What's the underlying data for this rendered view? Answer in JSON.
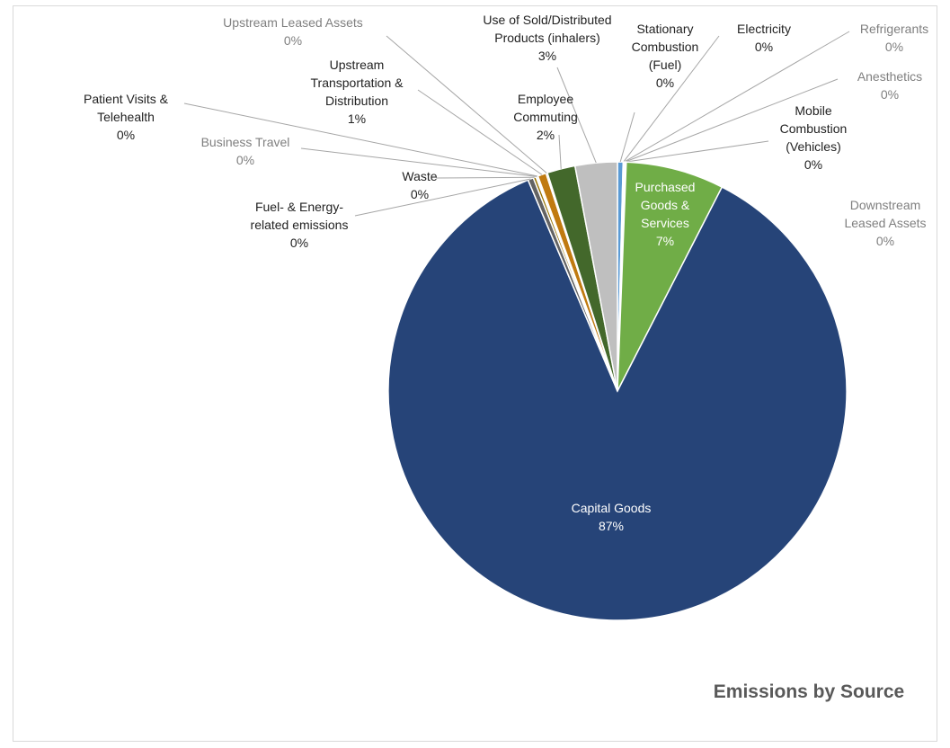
{
  "chart_data": {
    "type": "pie",
    "title": "Emissions by Source",
    "categories": [
      "Stationary Combustion (Fuel)",
      "Electricity",
      "Refrigerants",
      "Anesthetics",
      "Mobile Combustion (Vehicles)",
      "Downstream Leased Assets",
      "Purchased Goods & Services",
      "Capital Goods",
      "Fuel- & Energy-related emissions",
      "Waste",
      "Business Travel",
      "Patient Visits & Telehealth",
      "Upstream Transportation & Distribution",
      "Upstream Leased Assets",
      "Employee Commuting",
      "Use of Sold/Distributed Products (inhalers)"
    ],
    "values": [
      0.4,
      0.05,
      0.05,
      0.05,
      0.05,
      0.02,
      7,
      87,
      0.4,
      0.2,
      0.1,
      0.05,
      0.6,
      0.1,
      2,
      3
    ],
    "value_labels": [
      "0%",
      "0%",
      "0%",
      "0%",
      "0%",
      "0%",
      "7%",
      "87%",
      "0%",
      "0%",
      "0%",
      "0%",
      "1%",
      "0%",
      "2%",
      "3%"
    ],
    "colors": [
      "#5b9bd5",
      "#ed7d31",
      "#a5a5a5",
      "#ffc000",
      "#4472c4",
      "#70ad47",
      "#70ad47",
      "#264478",
      "#636363",
      "#997300",
      "#255e91",
      "#9e480e",
      "#c07a10",
      "#7f7f7f",
      "#43682b",
      "#bfbfbf"
    ]
  }
}
